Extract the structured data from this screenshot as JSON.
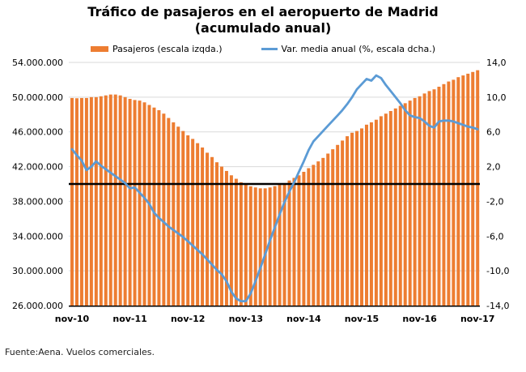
{
  "title": {
    "line1": "Tráfico de pasajeros en el aeropuerto de Madrid",
    "line2": "(acumulado anual)"
  },
  "legend": [
    {
      "label": "Pasajeros (escala izqda.)",
      "swatch": "bar",
      "color": "#ED7D31"
    },
    {
      "label": "Var. media anual (%, escala dcha.)",
      "swatch": "line",
      "color": "#5B9BD5"
    }
  ],
  "footer": {
    "source": "Fuente:Aena. Vuelos comerciales."
  },
  "chart_data": {
    "type": "combo-bar-line",
    "title": "Tráfico de pasajeros en el aeropuerto de Madrid (acumulado anual)",
    "x": {
      "frequency": "monthly",
      "n_points": 85,
      "start": "nov-10",
      "end": "nov-17",
      "tick_indices": [
        0,
        12,
        24,
        36,
        48,
        60,
        72,
        84
      ],
      "tick_labels": [
        "nov-10",
        "nov-11",
        "nov-12",
        "nov-13",
        "nov-14",
        "nov-15",
        "nov-16",
        "nov-17"
      ]
    },
    "left_axis": {
      "min": 26000000,
      "max": 54000000,
      "tick_step": 4000000,
      "tick_labels_top_to_bottom": [
        "54.000.000",
        "50.000.000",
        "46.000.000",
        "42.000.000",
        "38.000.000",
        "34.000.000",
        "30.000.000",
        "26.000.000"
      ]
    },
    "right_axis": {
      "min": -14,
      "max": 14,
      "tick_step": 4,
      "tick_labels_top_to_bottom": [
        "14,0",
        "10,0",
        "6,0",
        "2,0",
        "-2,0",
        "-6,0",
        "-10,0",
        "-14,0"
      ]
    },
    "baseline": {
      "left_value": 40000000,
      "right_value": 0,
      "color": "#000000"
    },
    "grid_color": "#D9D9D9",
    "axis_line_color": "#000000",
    "series": [
      {
        "name": "Pasajeros (escala izqda.)",
        "type": "bar",
        "axis": "left",
        "color": "#ED7D31",
        "unit": "pasajeros acumulados 12 meses (millones)",
        "values": [
          49.9,
          49.87,
          49.9,
          49.9,
          50.0,
          50.0,
          50.1,
          50.2,
          50.3,
          50.3,
          50.2,
          50.0,
          49.8,
          49.67,
          49.6,
          49.4,
          49.1,
          48.8,
          48.5,
          48.1,
          47.6,
          47.1,
          46.6,
          46.1,
          45.6,
          45.19,
          44.7,
          44.2,
          43.6,
          43.1,
          42.5,
          42.0,
          41.5,
          41.0,
          40.6,
          40.2,
          39.95,
          39.73,
          39.6,
          39.5,
          39.5,
          39.6,
          39.75,
          39.9,
          40.1,
          40.4,
          40.7,
          41.0,
          41.4,
          41.82,
          42.2,
          42.6,
          43.0,
          43.5,
          44.0,
          44.5,
          45.0,
          45.5,
          45.9,
          46.1,
          46.4,
          46.83,
          47.1,
          47.4,
          47.8,
          48.1,
          48.4,
          48.7,
          49.0,
          49.3,
          49.6,
          49.9,
          50.1,
          50.42,
          50.7,
          50.9,
          51.2,
          51.5,
          51.8,
          52.0,
          52.3,
          52.5,
          52.7,
          52.9,
          53.1
        ]
      },
      {
        "name": "Var. media anual (%, escala dcha.)",
        "type": "line",
        "axis": "right",
        "color": "#5B9BD5",
        "unit": "%",
        "values": [
          4.0,
          3.3,
          2.7,
          1.6,
          2.0,
          2.6,
          2.1,
          1.7,
          1.3,
          0.9,
          0.5,
          0.1,
          -0.5,
          -0.4,
          -1.0,
          -1.6,
          -2.3,
          -3.3,
          -3.9,
          -4.4,
          -4.9,
          -5.3,
          -5.7,
          -6.1,
          -6.6,
          -7.1,
          -7.6,
          -8.1,
          -8.7,
          -9.3,
          -9.9,
          -10.4,
          -11.2,
          -12.4,
          -13.2,
          -13.5,
          -13.5,
          -12.6,
          -11.2,
          -9.7,
          -8.1,
          -6.5,
          -5.0,
          -3.5,
          -2.1,
          -0.9,
          0.2,
          1.4,
          2.6,
          3.9,
          4.9,
          5.5,
          6.1,
          6.7,
          7.3,
          7.9,
          8.5,
          9.2,
          10.0,
          10.9,
          11.5,
          12.1,
          11.9,
          12.5,
          12.2,
          11.4,
          10.7,
          10.0,
          9.3,
          8.5,
          7.9,
          7.7,
          7.6,
          7.2,
          6.7,
          6.5,
          7.2,
          7.3,
          7.3,
          7.2,
          7.0,
          6.8,
          6.6,
          6.5,
          6.3
        ]
      }
    ]
  }
}
